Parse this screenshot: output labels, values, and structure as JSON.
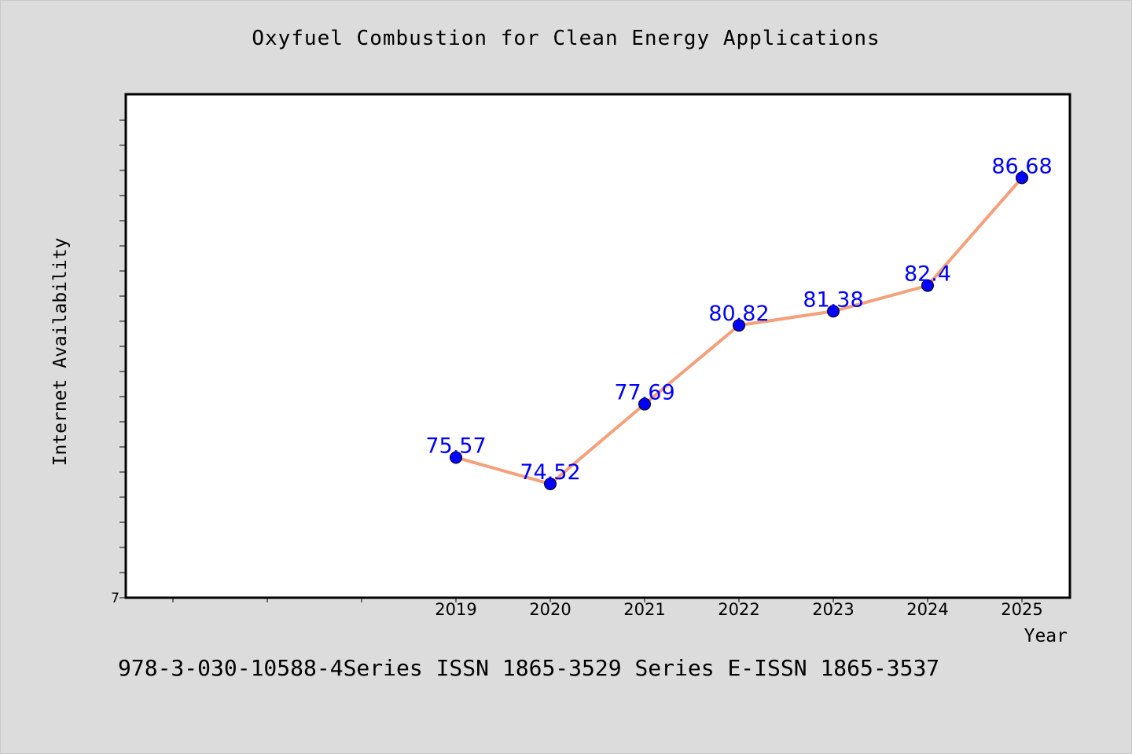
{
  "chart_data": {
    "type": "line",
    "title": "Oxyfuel Combustion for Clean Energy Applications",
    "xlabel": "Year",
    "ylabel": "Internet Availability",
    "x": [
      "2019",
      "2020",
      "2021",
      "2022",
      "2023",
      "2024",
      "2025"
    ],
    "series": [
      {
        "values": [
          75.57,
          74.52,
          77.69,
          80.82,
          81.38,
          82.4,
          86.68
        ]
      }
    ],
    "data_labels": [
      "75.57",
      "74.52",
      "77.69",
      "80.82",
      "81.38",
      "82.4",
      "86.68"
    ],
    "y_tick_labels": [
      "7"
    ],
    "ylim": [
      70,
      90
    ],
    "grid": false,
    "colors": {
      "line": "#f4a07a",
      "marker": "#0000ff",
      "label": "#0000ff",
      "background": "#dcdcdc",
      "plot_background": "#ffffff"
    }
  },
  "footnote": "978-3-030-10588-4Series ISSN 1865-3529 Series E-ISSN 1865-3537"
}
